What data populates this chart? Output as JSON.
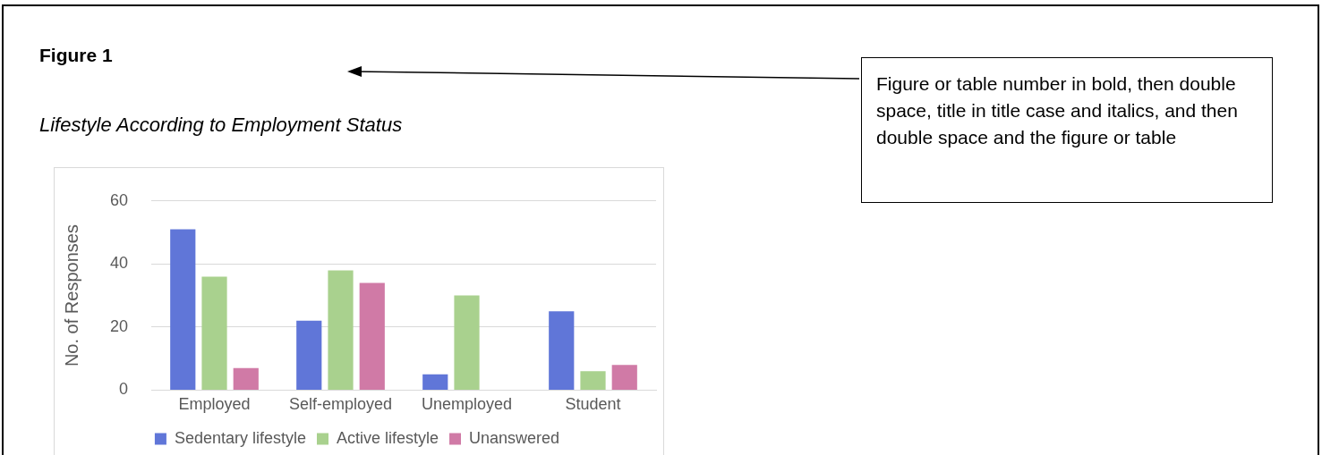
{
  "chart_data": {
    "type": "bar",
    "title": "Figure 1",
    "subtitle": "Lifestyle According to Employment Status",
    "ylabel": "No. of Responses",
    "annotations": [
      "Figure or table number in bold, then double space, title in title case and italics, and then double space and the figure or table"
    ],
    "categories": [
      "Employed",
      "Self-employed",
      "Unemployed",
      "Student"
    ],
    "series": [
      {
        "name": "Sedentary lifestyle",
        "color": "#6076d8",
        "values": [
          51,
          22,
          5,
          25
        ]
      },
      {
        "name": "Active lifestyle",
        "color": "#a9d18e",
        "values": [
          36,
          38,
          30,
          6
        ]
      },
      {
        "name": "Unanswered",
        "color": "#d07aa6",
        "values": [
          7,
          34,
          0,
          8
        ]
      }
    ],
    "ylim": [
      0,
      60
    ],
    "yticks": [
      0,
      20,
      40,
      60
    ],
    "grid": "y",
    "legend": "bottom"
  }
}
